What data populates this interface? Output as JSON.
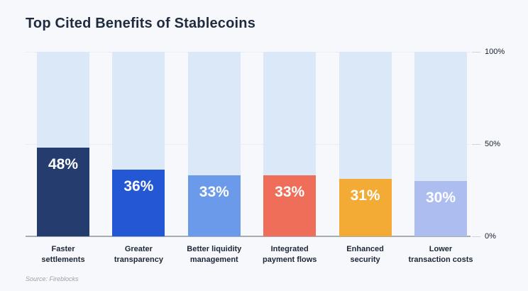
{
  "title": "Top Cited Benefits of Stablecoins",
  "source": "Source: Fireblocks",
  "colors": {
    "background": "#f7f8fb",
    "track": "#dbe8f8",
    "title_text": "#1f2b3e",
    "value_text": "#ffffff",
    "axis_line": "#a7adb5",
    "gridline": "#e9edf3"
  },
  "chart_data": {
    "type": "bar",
    "title": "Top Cited Benefits of Stablecoins",
    "categories": [
      "Faster settlements",
      "Greater transparency",
      "Better liquidity management",
      "Integrated payment flows",
      "Enhanced security",
      "Lower transaction costs"
    ],
    "category_lines": [
      [
        "Faster",
        "settlements"
      ],
      [
        "Greater",
        "transparency"
      ],
      [
        "Better liquidity",
        "management"
      ],
      [
        "Integrated",
        "payment flows"
      ],
      [
        "Enhanced",
        "security"
      ],
      [
        "Lower",
        "transaction costs"
      ]
    ],
    "values": [
      48,
      36,
      33,
      33,
      31,
      30
    ],
    "value_labels": [
      "48%",
      "36%",
      "33%",
      "33%",
      "31%",
      "30%"
    ],
    "bar_colors": [
      "#243d6e",
      "#2457d4",
      "#6c9aea",
      "#ee6e5a",
      "#f3ab36",
      "#adbdf0"
    ],
    "xlabel": "",
    "ylabel": "",
    "ylim": [
      0,
      100
    ],
    "yticks": [
      {
        "value": 100,
        "label": "100%"
      },
      {
        "value": 50,
        "label": "50%"
      },
      {
        "value": 0,
        "label": "0%"
      }
    ],
    "grid": true,
    "legend": false,
    "value_axis_side": "right"
  }
}
